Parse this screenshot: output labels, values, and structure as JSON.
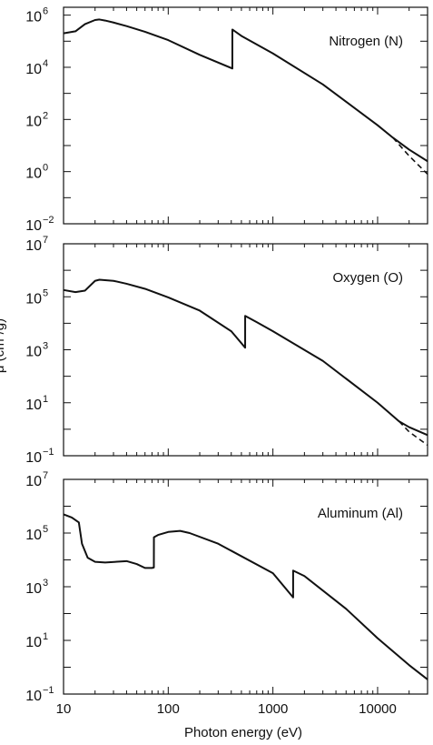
{
  "chart_data": {
    "type": "line",
    "xlabel": "Photon energy (eV)",
    "ylabel": "μ (cm²/g)",
    "xscale": "log",
    "yscale": "log",
    "xlim": [
      10,
      30000
    ],
    "x_tick_labels": [
      "10",
      "100",
      "1000",
      "10000"
    ],
    "panels": [
      {
        "label": "Nitrogen (N)",
        "ylim": [
          0.01,
          2000000
        ],
        "y_ticks": [
          {
            "mant": "10",
            "exp": "6"
          },
          {
            "mant": "10",
            "exp": "4"
          },
          {
            "mant": "10",
            "exp": "2"
          },
          {
            "mant": "10",
            "exp": "0"
          },
          {
            "mant": "10",
            "exp": "−2"
          }
        ],
        "y_tick_values": [
          1000000,
          10000,
          100,
          1,
          0.01
        ],
        "series": [
          {
            "name": "solid",
            "style": "solid",
            "x": [
              10,
              13,
              16,
              20,
              22,
              25,
              30,
              40,
              60,
              100,
              200,
              409.9,
              410,
              500,
              1000,
              3000,
              10000,
              14000,
              20000,
              30000
            ],
            "y": [
              200000,
              240000,
              450000,
              650000,
              680000,
              620000,
              520000,
              380000,
              230000,
              110000,
              30000,
              9000,
              280000,
              160000,
              34000,
              2200,
              60,
              20,
              7,
              2.5
            ]
          },
          {
            "name": "dashed",
            "style": "dashed",
            "x": [
              14000,
              20000,
              30000
            ],
            "y": [
              20,
              4,
              0.8
            ]
          }
        ]
      },
      {
        "label": "Oxygen (O)",
        "ylim": [
          0.1,
          10000000
        ],
        "y_ticks": [
          {
            "mant": "10",
            "exp": "7"
          },
          {
            "mant": "10",
            "exp": "5"
          },
          {
            "mant": "10",
            "exp": "3"
          },
          {
            "mant": "10",
            "exp": "1"
          },
          {
            "mant": "10",
            "exp": "−1"
          }
        ],
        "y_tick_values": [
          10000000,
          100000,
          1000,
          10,
          0.1
        ],
        "series": [
          {
            "name": "solid",
            "style": "solid",
            "x": [
              10,
              13,
              16,
              20,
              22,
              30,
              40,
              60,
              100,
              200,
              400,
              542.9,
              543,
              700,
              1000,
              3000,
              10000,
              16000,
              20000,
              30000
            ],
            "y": [
              180000,
              150000,
              170000,
              400000,
              440000,
              400000,
              310000,
              200000,
              95000,
              30000,
              5000,
              1200,
              19000,
              11000,
              5000,
              380,
              10,
              2,
              1.2,
              0.6
            ]
          },
          {
            "name": "dashed",
            "style": "dashed",
            "x": [
              16000,
              20000,
              30000
            ],
            "y": [
              2,
              0.8,
              0.25
            ]
          }
        ]
      },
      {
        "label": "Aluminum (Al)",
        "ylim": [
          0.1,
          10000000
        ],
        "y_ticks": [
          {
            "mant": "10",
            "exp": "7"
          },
          {
            "mant": "10",
            "exp": "5"
          },
          {
            "mant": "10",
            "exp": "3"
          },
          {
            "mant": "10",
            "exp": "1"
          },
          {
            "mant": "10",
            "exp": "−1"
          }
        ],
        "y_tick_values": [
          10000000,
          100000,
          1000,
          10,
          0.1
        ],
        "series": [
          {
            "name": "solid",
            "style": "solid",
            "x": [
              10,
              12,
              14,
              15,
              17,
              20,
              25,
              40,
              50,
              60,
              70,
              72.9,
              73,
              80,
              100,
              130,
              160,
              300,
              1000,
              1559.9,
              1560,
              2000,
              5000,
              10000,
              20000,
              30000
            ],
            "y": [
              500000,
              380000,
              250000,
              40000,
              12000,
              8500,
              8000,
              9000,
              7000,
              5000,
              5000,
              5200,
              70000,
              85000,
              110000,
              120000,
              100000,
              40000,
              3200,
              400,
              4000,
              2500,
              150,
              12,
              1.2,
              0.35
            ]
          }
        ]
      }
    ]
  }
}
